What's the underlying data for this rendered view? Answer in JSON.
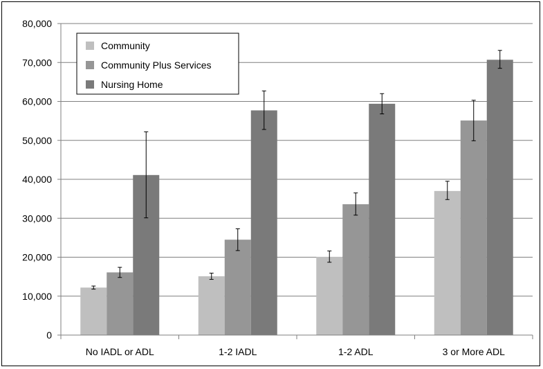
{
  "chart_data": {
    "type": "bar",
    "title": "",
    "xlabel": "",
    "ylabel": "",
    "ylim": [
      0,
      80000
    ],
    "yticks": [
      0,
      10000,
      20000,
      30000,
      40000,
      50000,
      60000,
      70000,
      80000
    ],
    "ytick_labels": [
      "0",
      "10,000",
      "20,000",
      "30,000",
      "40,000",
      "50,000",
      "60,000",
      "70,000",
      "80,000"
    ],
    "categories": [
      "No IADL or ADL",
      "1-2 IADL",
      "1-2 ADL",
      "3 or More ADL"
    ],
    "grid": true,
    "legend_position": "top-left",
    "series": [
      {
        "name": "Community",
        "color": "#bfbfbf",
        "values": [
          12200,
          15100,
          20100,
          37000
        ],
        "error_low": [
          11800,
          14300,
          18700,
          34800
        ],
        "error_high": [
          12600,
          15900,
          21600,
          39500
        ]
      },
      {
        "name": "Community Plus Services",
        "color": "#969696",
        "values": [
          16100,
          24500,
          33600,
          55100
        ],
        "error_low": [
          14800,
          21700,
          30800,
          49900
        ],
        "error_high": [
          17400,
          27300,
          36500,
          60300
        ]
      },
      {
        "name": "Nursing Home",
        "color": "#7a7a7a",
        "values": [
          41100,
          57700,
          59400,
          70700
        ],
        "error_low": [
          30100,
          52800,
          56800,
          68500
        ],
        "error_high": [
          52200,
          62700,
          62000,
          73100
        ]
      }
    ]
  }
}
